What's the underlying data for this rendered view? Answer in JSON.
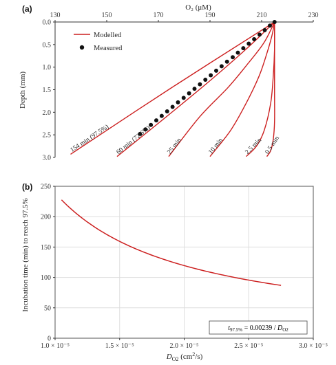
{
  "chart_data": [
    {
      "panel_label": "(a)",
      "type": "line",
      "xlabel": "O₂ (μM)",
      "ylabel": "Depth (mm)",
      "xlim": [
        130,
        230
      ],
      "ylim": [
        3.0,
        0.0
      ],
      "x_axis_position": "top",
      "x_ticks": [
        130,
        150,
        170,
        190,
        210,
        230
      ],
      "y_ticks": [
        0.0,
        0.5,
        1.0,
        1.5,
        2.0,
        2.5,
        3.0
      ],
      "grid": false,
      "legend": {
        "position": "top-left",
        "items": [
          {
            "label": "Modelled",
            "style": "line",
            "color": "#cc1f1f"
          },
          {
            "label": "Measured",
            "style": "marker",
            "color": "#111111"
          }
        ]
      },
      "series": [
        {
          "name": "154 min (97.5%)",
          "label": "154 min (97.5%)",
          "points": [
            [
              215,
              0.0
            ],
            [
              175,
              1.46
            ],
            [
              136,
              2.93
            ]
          ]
        },
        {
          "name": "60 min (72.6%)",
          "label": "60 min (72.6%)",
          "points": [
            [
              215,
              0.0
            ],
            [
              204,
              0.6
            ],
            [
              190,
              1.3
            ],
            [
              172,
              2.15
            ],
            [
              154,
              2.98
            ]
          ]
        },
        {
          "name": "25 min",
          "label": "25 min",
          "points": [
            [
              215,
              0.0
            ],
            [
              211,
              0.45
            ],
            [
              205,
              0.9
            ],
            [
              197,
              1.45
            ],
            [
              186,
              2.1
            ],
            [
              174,
              2.98
            ]
          ]
        },
        {
          "name": "10 min",
          "label": "10 min",
          "points": [
            [
              215,
              0.0
            ],
            [
              214,
              0.3
            ],
            [
              212,
              0.7
            ],
            [
              209,
              1.2
            ],
            [
              204,
              1.8
            ],
            [
              198,
              2.4
            ],
            [
              190,
              2.98
            ]
          ]
        },
        {
          "name": "2.5 min",
          "label": "2.5 min",
          "points": [
            [
              215,
              0.0
            ],
            [
              215,
              0.6
            ],
            [
              214.5,
              1.2
            ],
            [
              213.5,
              1.8
            ],
            [
              211,
              2.4
            ],
            [
              208,
              2.75
            ],
            [
              204,
              2.98
            ]
          ]
        },
        {
          "name": "0.5 min",
          "label": "0.5 min",
          "points": [
            [
              215,
              0.0
            ],
            [
              215,
              1.5
            ],
            [
              215,
              2.2
            ],
            [
              214.5,
              2.6
            ],
            [
              213.5,
              2.85
            ],
            [
              212,
              2.98
            ]
          ]
        }
      ],
      "measured": {
        "x": [
          215,
          213.2,
          211.2,
          209.2,
          207.1,
          205.0,
          202.9,
          200.8,
          198.8,
          196.6,
          194.5,
          192.4,
          190.3,
          188.2,
          186.1,
          184.0,
          181.9,
          179.8,
          177.6,
          175.5,
          173.4,
          171.3,
          169.2,
          167.1,
          165.0,
          162.9
        ],
        "y": [
          0.0,
          0.08,
          0.18,
          0.28,
          0.38,
          0.48,
          0.58,
          0.68,
          0.78,
          0.88,
          0.98,
          1.08,
          1.18,
          1.28,
          1.38,
          1.48,
          1.58,
          1.68,
          1.78,
          1.88,
          1.98,
          2.08,
          2.18,
          2.28,
          2.38,
          2.48
        ]
      }
    },
    {
      "panel_label": "(b)",
      "type": "line",
      "xlabel": "D_O2 (cm²/s)",
      "ylabel": "Incubation time (min) to reach 97.5%",
      "xlim": [
        1e-05,
        3e-05
      ],
      "ylim": [
        0,
        250
      ],
      "x_tick_labels": [
        "1.0 × 10⁻⁵",
        "1.5 × 10⁻⁵",
        "2.0 × 10⁻⁵",
        "2.5 × 10⁻⁵",
        "3.0 × 10⁻⁵"
      ],
      "x_ticks": [
        1e-05,
        1.5e-05,
        2e-05,
        2.5e-05,
        3e-05
      ],
      "y_ticks": [
        0,
        50,
        100,
        150,
        200,
        250
      ],
      "grid": true,
      "annotation": "t97.5% = 0.00239 / DO2",
      "series": [
        {
          "name": "",
          "formula_coefficient": 0.00239,
          "x_range": [
            1.05e-05,
            2.75e-05
          ]
        }
      ]
    }
  ],
  "colors": {
    "modelled": "#cc1f1f",
    "measured": "#111111",
    "grid": "#dddddd"
  }
}
